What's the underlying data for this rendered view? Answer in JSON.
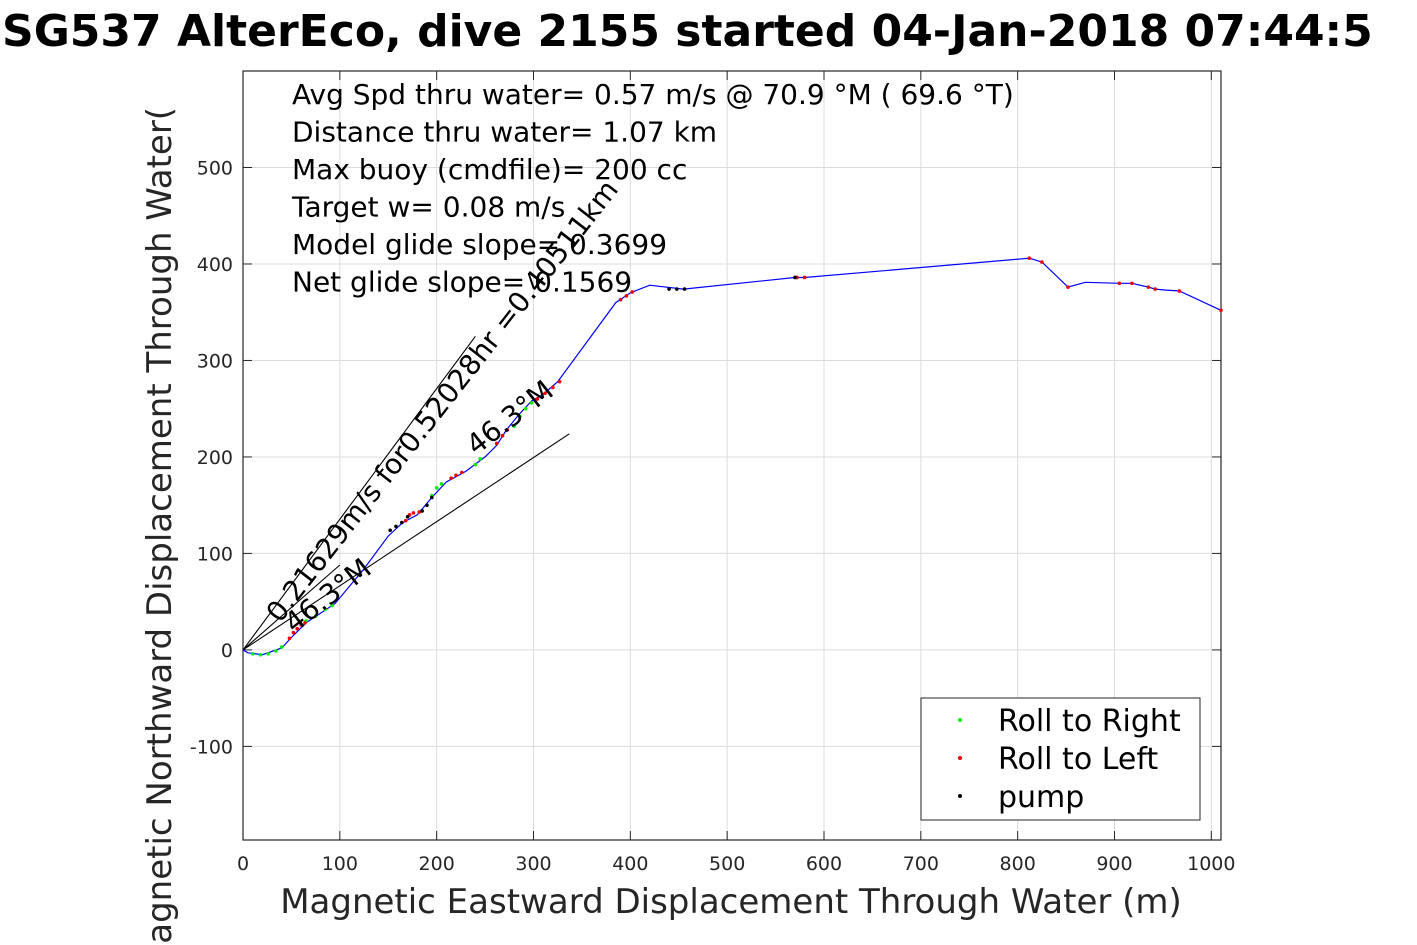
{
  "title": "SG537 AlterEco, dive 2155 started 04-Jan-2018 07:44:5",
  "chart_data": {
    "type": "scatter",
    "xlabel": "Magnetic Eastward Displacement Through Water (m)",
    "ylabel": "Magnetic Northward Displacement Through Water(",
    "xlim": [
      0,
      1010
    ],
    "ylim": [
      -197,
      600
    ],
    "xticks": [
      "0",
      "100",
      "200",
      "300",
      "400",
      "500",
      "600",
      "700",
      "800",
      "900",
      "1000"
    ],
    "xtick_values": [
      0,
      100,
      200,
      300,
      400,
      500,
      600,
      700,
      800,
      900,
      1000
    ],
    "yticks": [
      "-100",
      "0",
      "100",
      "200",
      "300",
      "400",
      "500"
    ],
    "ytick_values": [
      -100,
      0,
      100,
      200,
      300,
      400,
      500
    ],
    "grid": true,
    "annotations": [
      "Avg Spd thru water=  0.57 m/s @  70.9 °M ( 69.6 °T)",
      "Distance thru water=  1.07 km",
      "Max buoy (cmdfile)= 200 cc",
      "Target w= 0.08 m/s",
      "Model glide slope= 0.3699",
      "Net glide slope= 0.1569"
    ],
    "rotated_labels": [
      "0.21629m/s for0.52028hr =0.40511km",
      "46.3°M",
      "46.3°M"
    ],
    "track_color": "#0000ff",
    "track": [
      [
        0,
        0
      ],
      [
        5,
        -3
      ],
      [
        20,
        -5
      ],
      [
        40,
        2
      ],
      [
        52,
        15
      ],
      [
        65,
        28
      ],
      [
        80,
        38
      ],
      [
        95,
        48
      ],
      [
        125,
        84
      ],
      [
        150,
        118
      ],
      [
        165,
        132
      ],
      [
        180,
        140
      ],
      [
        195,
        158
      ],
      [
        210,
        174
      ],
      [
        230,
        185
      ],
      [
        250,
        200
      ],
      [
        262,
        212
      ],
      [
        272,
        228
      ],
      [
        285,
        244
      ],
      [
        298,
        258
      ],
      [
        310,
        265
      ],
      [
        325,
        278
      ],
      [
        385,
        360
      ],
      [
        400,
        370
      ],
      [
        420,
        378
      ],
      [
        455,
        374
      ],
      [
        570,
        386
      ],
      [
        580,
        386
      ],
      [
        812,
        406
      ],
      [
        825,
        402
      ],
      [
        852,
        376
      ],
      [
        870,
        381
      ],
      [
        905,
        380
      ],
      [
        918,
        380
      ],
      [
        935,
        376
      ],
      [
        942,
        374
      ],
      [
        952,
        373
      ],
      [
        967,
        372
      ],
      [
        1010,
        352
      ]
    ],
    "series": [
      {
        "name": "Roll to Right",
        "color": "#00ee00",
        "points": [
          [
            10,
            -4
          ],
          [
            18,
            -5
          ],
          [
            26,
            -4
          ],
          [
            34,
            -1
          ],
          [
            40,
            3
          ],
          [
            65,
            30
          ],
          [
            75,
            35
          ],
          [
            85,
            42
          ],
          [
            92,
            46
          ],
          [
            195,
            160
          ],
          [
            200,
            168
          ],
          [
            205,
            172
          ],
          [
            240,
            192
          ],
          [
            245,
            198
          ],
          [
            280,
            232
          ],
          [
            286,
            242
          ],
          [
            292,
            250
          ],
          [
            298,
            256
          ]
        ]
      },
      {
        "name": "Roll to Left",
        "color": "#ee0000",
        "points": [
          [
            48,
            12
          ],
          [
            52,
            18
          ],
          [
            56,
            22
          ],
          [
            60,
            26
          ],
          [
            64,
            28
          ],
          [
            168,
            134
          ],
          [
            172,
            140
          ],
          [
            176,
            142
          ],
          [
            182,
            143
          ],
          [
            215,
            178
          ],
          [
            220,
            181
          ],
          [
            226,
            184
          ],
          [
            262,
            214
          ],
          [
            268,
            222
          ],
          [
            273,
            228
          ],
          [
            304,
            260
          ],
          [
            312,
            266
          ],
          [
            320,
            272
          ],
          [
            327,
            278
          ],
          [
            390,
            363
          ],
          [
            396,
            367
          ],
          [
            402,
            371
          ],
          [
            812,
            406
          ],
          [
            825,
            402
          ],
          [
            852,
            376
          ],
          [
            905,
            380
          ],
          [
            918,
            380
          ],
          [
            935,
            376
          ],
          [
            942,
            374
          ],
          [
            967,
            372
          ],
          [
            1010,
            352
          ],
          [
            572,
            386
          ],
          [
            580,
            386
          ]
        ]
      },
      {
        "name": "pump",
        "color": "#000000",
        "points": [
          [
            152,
            124
          ],
          [
            158,
            128
          ],
          [
            164,
            132
          ],
          [
            170,
            138
          ],
          [
            185,
            144
          ],
          [
            190,
            150
          ],
          [
            195,
            158
          ],
          [
            440,
            374
          ],
          [
            448,
            374
          ],
          [
            456,
            374
          ],
          [
            570,
            386
          ]
        ]
      }
    ],
    "reference_lines": [
      {
        "from": [
          0,
          0
        ],
        "to": [
          240,
          325
        ]
      },
      {
        "from": [
          0,
          0
        ],
        "to": [
          337,
          224
        ]
      },
      {
        "from": [
          0,
          0
        ],
        "to": [
          100,
          88
        ]
      }
    ],
    "legend_position": "bottom-right"
  }
}
